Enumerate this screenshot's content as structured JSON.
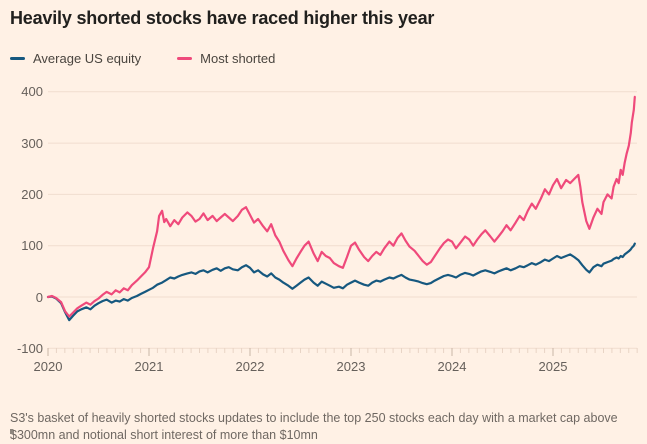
{
  "title": "Heavily shorted stocks have raced higher this year",
  "legend": [
    {
      "label": "Average US equity",
      "color": "#16587f"
    },
    {
      "label": "Most shorted",
      "color": "#ef4a7b"
    }
  ],
  "footnote": "S3's basket of heavily shorted stocks updates to include the top 250 stocks each day with a market cap above $300mn and notional short interest of more than $10mn",
  "colors": {
    "background": "#fff1e5",
    "gridline": "#f1ddcf",
    "tick_minor": "#e8d4c5",
    "tick_major": "#c9b6a8",
    "axis_text": "#66605b",
    "title_text": "#21201e",
    "footnote_text": "#6f6862",
    "blue_series": "#16587f",
    "pink_series": "#ef4a7b"
  },
  "chart_data": {
    "type": "line",
    "title": "Heavily shorted stocks have raced higher this year",
    "xlabel": "",
    "ylabel": "",
    "x_unit": "year (daily indexed performance, % since Jan 2020)",
    "xlim": [
      2020,
      2025.85
    ],
    "ylim": [
      -100,
      400
    ],
    "yticks": [
      400,
      300,
      200,
      100,
      0,
      -100
    ],
    "xticks": [
      2020,
      2021,
      2022,
      2023,
      2024,
      2025
    ],
    "minor_xticks": "monthly",
    "grid": "horizontal",
    "legend_position": "top-left",
    "series": [
      {
        "name": "Average US equity",
        "color": "#16587f",
        "points": [
          [
            2020.0,
            0
          ],
          [
            2020.04,
            1
          ],
          [
            2020.08,
            -3
          ],
          [
            2020.13,
            -12
          ],
          [
            2020.17,
            -30
          ],
          [
            2020.21,
            -45
          ],
          [
            2020.25,
            -36
          ],
          [
            2020.29,
            -28
          ],
          [
            2020.33,
            -24
          ],
          [
            2020.38,
            -20
          ],
          [
            2020.42,
            -24
          ],
          [
            2020.46,
            -17
          ],
          [
            2020.5,
            -12
          ],
          [
            2020.54,
            -8
          ],
          [
            2020.58,
            -5
          ],
          [
            2020.63,
            -11
          ],
          [
            2020.67,
            -7
          ],
          [
            2020.71,
            -9
          ],
          [
            2020.75,
            -4
          ],
          [
            2020.79,
            -7
          ],
          [
            2020.83,
            -2
          ],
          [
            2020.88,
            2
          ],
          [
            2020.92,
            6
          ],
          [
            2020.96,
            10
          ],
          [
            2021.0,
            14
          ],
          [
            2021.04,
            18
          ],
          [
            2021.08,
            24
          ],
          [
            2021.13,
            28
          ],
          [
            2021.17,
            33
          ],
          [
            2021.21,
            38
          ],
          [
            2021.25,
            36
          ],
          [
            2021.29,
            40
          ],
          [
            2021.33,
            43
          ],
          [
            2021.38,
            46
          ],
          [
            2021.42,
            48
          ],
          [
            2021.46,
            45
          ],
          [
            2021.5,
            50
          ],
          [
            2021.54,
            52
          ],
          [
            2021.58,
            48
          ],
          [
            2021.63,
            53
          ],
          [
            2021.67,
            56
          ],
          [
            2021.71,
            51
          ],
          [
            2021.75,
            56
          ],
          [
            2021.79,
            58
          ],
          [
            2021.83,
            54
          ],
          [
            2021.88,
            52
          ],
          [
            2021.92,
            58
          ],
          [
            2021.96,
            62
          ],
          [
            2022.0,
            57
          ],
          [
            2022.04,
            48
          ],
          [
            2022.08,
            52
          ],
          [
            2022.13,
            44
          ],
          [
            2022.17,
            40
          ],
          [
            2022.21,
            46
          ],
          [
            2022.25,
            38
          ],
          [
            2022.29,
            34
          ],
          [
            2022.33,
            28
          ],
          [
            2022.38,
            22
          ],
          [
            2022.42,
            16
          ],
          [
            2022.46,
            22
          ],
          [
            2022.5,
            28
          ],
          [
            2022.54,
            34
          ],
          [
            2022.58,
            38
          ],
          [
            2022.63,
            28
          ],
          [
            2022.67,
            22
          ],
          [
            2022.71,
            30
          ],
          [
            2022.75,
            26
          ],
          [
            2022.79,
            22
          ],
          [
            2022.83,
            18
          ],
          [
            2022.88,
            20
          ],
          [
            2022.92,
            17
          ],
          [
            2022.96,
            24
          ],
          [
            2023.0,
            28
          ],
          [
            2023.04,
            32
          ],
          [
            2023.08,
            28
          ],
          [
            2023.13,
            24
          ],
          [
            2023.17,
            22
          ],
          [
            2023.21,
            28
          ],
          [
            2023.25,
            32
          ],
          [
            2023.29,
            30
          ],
          [
            2023.33,
            34
          ],
          [
            2023.38,
            38
          ],
          [
            2023.42,
            36
          ],
          [
            2023.46,
            40
          ],
          [
            2023.5,
            43
          ],
          [
            2023.54,
            38
          ],
          [
            2023.58,
            34
          ],
          [
            2023.63,
            32
          ],
          [
            2023.67,
            30
          ],
          [
            2023.71,
            27
          ],
          [
            2023.75,
            25
          ],
          [
            2023.79,
            27
          ],
          [
            2023.83,
            32
          ],
          [
            2023.88,
            37
          ],
          [
            2023.92,
            41
          ],
          [
            2023.96,
            43
          ],
          [
            2024.0,
            41
          ],
          [
            2024.04,
            38
          ],
          [
            2024.08,
            43
          ],
          [
            2024.13,
            47
          ],
          [
            2024.17,
            45
          ],
          [
            2024.21,
            42
          ],
          [
            2024.25,
            46
          ],
          [
            2024.29,
            50
          ],
          [
            2024.33,
            52
          ],
          [
            2024.38,
            49
          ],
          [
            2024.42,
            46
          ],
          [
            2024.46,
            50
          ],
          [
            2024.5,
            53
          ],
          [
            2024.54,
            56
          ],
          [
            2024.58,
            52
          ],
          [
            2024.63,
            56
          ],
          [
            2024.67,
            60
          ],
          [
            2024.71,
            58
          ],
          [
            2024.75,
            62
          ],
          [
            2024.79,
            66
          ],
          [
            2024.83,
            63
          ],
          [
            2024.88,
            68
          ],
          [
            2024.92,
            73
          ],
          [
            2024.96,
            70
          ],
          [
            2025.0,
            75
          ],
          [
            2025.04,
            80
          ],
          [
            2025.08,
            76
          ],
          [
            2025.13,
            80
          ],
          [
            2025.17,
            83
          ],
          [
            2025.21,
            78
          ],
          [
            2025.25,
            72
          ],
          [
            2025.29,
            62
          ],
          [
            2025.33,
            53
          ],
          [
            2025.36,
            48
          ],
          [
            2025.4,
            58
          ],
          [
            2025.44,
            63
          ],
          [
            2025.48,
            60
          ],
          [
            2025.5,
            65
          ],
          [
            2025.54,
            68
          ],
          [
            2025.58,
            71
          ],
          [
            2025.6,
            74
          ],
          [
            2025.63,
            77
          ],
          [
            2025.65,
            75
          ],
          [
            2025.67,
            80
          ],
          [
            2025.69,
            78
          ],
          [
            2025.71,
            83
          ],
          [
            2025.73,
            86
          ],
          [
            2025.75,
            89
          ],
          [
            2025.77,
            93
          ],
          [
            2025.78,
            96
          ],
          [
            2025.8,
            100
          ],
          [
            2025.81,
            104
          ]
        ]
      },
      {
        "name": "Most shorted",
        "color": "#ef4a7b",
        "points": [
          [
            2020.0,
            0
          ],
          [
            2020.04,
            2
          ],
          [
            2020.08,
            -2
          ],
          [
            2020.13,
            -10
          ],
          [
            2020.17,
            -28
          ],
          [
            2020.21,
            -38
          ],
          [
            2020.25,
            -30
          ],
          [
            2020.29,
            -22
          ],
          [
            2020.33,
            -17
          ],
          [
            2020.38,
            -11
          ],
          [
            2020.42,
            -15
          ],
          [
            2020.46,
            -8
          ],
          [
            2020.5,
            -3
          ],
          [
            2020.54,
            4
          ],
          [
            2020.58,
            10
          ],
          [
            2020.63,
            5
          ],
          [
            2020.67,
            13
          ],
          [
            2020.71,
            9
          ],
          [
            2020.75,
            17
          ],
          [
            2020.79,
            13
          ],
          [
            2020.83,
            23
          ],
          [
            2020.88,
            32
          ],
          [
            2020.92,
            40
          ],
          [
            2020.96,
            48
          ],
          [
            2021.0,
            58
          ],
          [
            2021.04,
            95
          ],
          [
            2021.08,
            128
          ],
          [
            2021.1,
            158
          ],
          [
            2021.13,
            168
          ],
          [
            2021.15,
            146
          ],
          [
            2021.17,
            152
          ],
          [
            2021.21,
            138
          ],
          [
            2021.25,
            150
          ],
          [
            2021.29,
            142
          ],
          [
            2021.33,
            155
          ],
          [
            2021.38,
            165
          ],
          [
            2021.42,
            158
          ],
          [
            2021.46,
            147
          ],
          [
            2021.5,
            152
          ],
          [
            2021.54,
            163
          ],
          [
            2021.58,
            150
          ],
          [
            2021.63,
            158
          ],
          [
            2021.67,
            148
          ],
          [
            2021.71,
            155
          ],
          [
            2021.75,
            162
          ],
          [
            2021.79,
            155
          ],
          [
            2021.83,
            148
          ],
          [
            2021.88,
            158
          ],
          [
            2021.92,
            170
          ],
          [
            2021.96,
            175
          ],
          [
            2022.0,
            160
          ],
          [
            2022.04,
            145
          ],
          [
            2022.08,
            152
          ],
          [
            2022.13,
            138
          ],
          [
            2022.17,
            128
          ],
          [
            2022.21,
            142
          ],
          [
            2022.25,
            120
          ],
          [
            2022.29,
            108
          ],
          [
            2022.33,
            90
          ],
          [
            2022.38,
            72
          ],
          [
            2022.42,
            60
          ],
          [
            2022.46,
            75
          ],
          [
            2022.5,
            88
          ],
          [
            2022.54,
            100
          ],
          [
            2022.58,
            108
          ],
          [
            2022.63,
            85
          ],
          [
            2022.67,
            70
          ],
          [
            2022.71,
            88
          ],
          [
            2022.75,
            80
          ],
          [
            2022.79,
            76
          ],
          [
            2022.83,
            66
          ],
          [
            2022.88,
            60
          ],
          [
            2022.92,
            57
          ],
          [
            2022.96,
            78
          ],
          [
            2023.0,
            100
          ],
          [
            2023.04,
            106
          ],
          [
            2023.08,
            92
          ],
          [
            2023.13,
            78
          ],
          [
            2023.17,
            70
          ],
          [
            2023.21,
            80
          ],
          [
            2023.25,
            88
          ],
          [
            2023.29,
            82
          ],
          [
            2023.33,
            95
          ],
          [
            2023.38,
            108
          ],
          [
            2023.42,
            100
          ],
          [
            2023.46,
            115
          ],
          [
            2023.5,
            124
          ],
          [
            2023.54,
            110
          ],
          [
            2023.58,
            98
          ],
          [
            2023.63,
            90
          ],
          [
            2023.67,
            80
          ],
          [
            2023.71,
            70
          ],
          [
            2023.75,
            63
          ],
          [
            2023.79,
            68
          ],
          [
            2023.83,
            80
          ],
          [
            2023.88,
            95
          ],
          [
            2023.92,
            105
          ],
          [
            2023.96,
            112
          ],
          [
            2024.0,
            108
          ],
          [
            2024.04,
            95
          ],
          [
            2024.08,
            105
          ],
          [
            2024.13,
            118
          ],
          [
            2024.17,
            112
          ],
          [
            2024.21,
            100
          ],
          [
            2024.25,
            112
          ],
          [
            2024.29,
            122
          ],
          [
            2024.33,
            130
          ],
          [
            2024.38,
            118
          ],
          [
            2024.42,
            108
          ],
          [
            2024.46,
            118
          ],
          [
            2024.5,
            128
          ],
          [
            2024.54,
            140
          ],
          [
            2024.58,
            130
          ],
          [
            2024.63,
            145
          ],
          [
            2024.67,
            158
          ],
          [
            2024.71,
            150
          ],
          [
            2024.75,
            168
          ],
          [
            2024.79,
            182
          ],
          [
            2024.83,
            172
          ],
          [
            2024.88,
            192
          ],
          [
            2024.92,
            210
          ],
          [
            2024.96,
            200
          ],
          [
            2025.0,
            218
          ],
          [
            2025.04,
            230
          ],
          [
            2025.08,
            212
          ],
          [
            2025.13,
            228
          ],
          [
            2025.17,
            222
          ],
          [
            2025.21,
            230
          ],
          [
            2025.25,
            238
          ],
          [
            2025.27,
            215
          ],
          [
            2025.29,
            185
          ],
          [
            2025.33,
            148
          ],
          [
            2025.36,
            133
          ],
          [
            2025.4,
            155
          ],
          [
            2025.44,
            172
          ],
          [
            2025.48,
            162
          ],
          [
            2025.5,
            185
          ],
          [
            2025.54,
            200
          ],
          [
            2025.58,
            192
          ],
          [
            2025.6,
            215
          ],
          [
            2025.63,
            230
          ],
          [
            2025.65,
            222
          ],
          [
            2025.67,
            248
          ],
          [
            2025.69,
            238
          ],
          [
            2025.71,
            262
          ],
          [
            2025.73,
            280
          ],
          [
            2025.75,
            295
          ],
          [
            2025.77,
            320
          ],
          [
            2025.78,
            340
          ],
          [
            2025.8,
            365
          ],
          [
            2025.81,
            390
          ]
        ]
      }
    ]
  }
}
